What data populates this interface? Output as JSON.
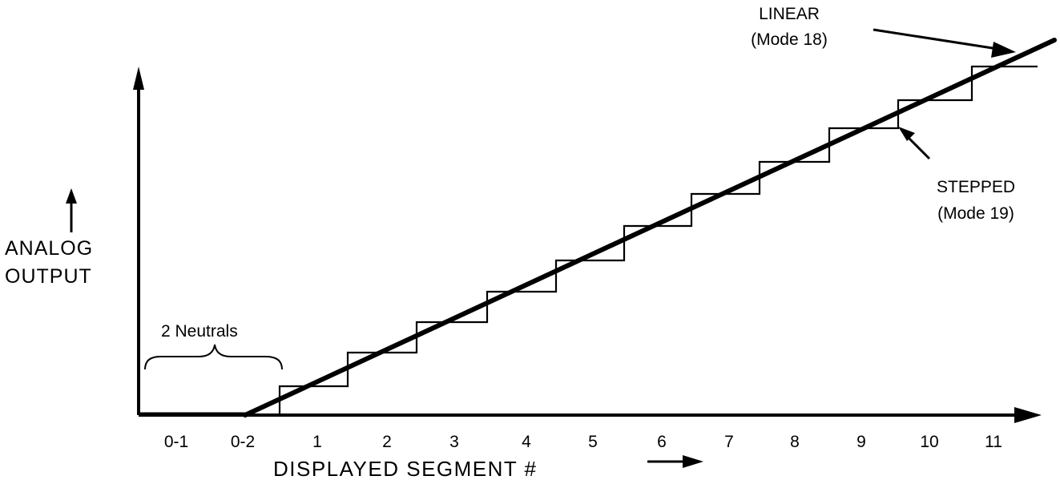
{
  "diagram": {
    "x_axis_title": "DISPLAYED SEGMENT #",
    "y_axis_title": [
      "ANALOG",
      "OUTPUT"
    ],
    "x_tick_labels": [
      "0-1",
      "0-2",
      "1",
      "2",
      "3",
      "4",
      "5",
      "6",
      "7",
      "8",
      "9",
      "10",
      "11"
    ],
    "neutrals_label": "2  Neutrals",
    "linear_label": [
      "LINEAR",
      "(Mode  18)"
    ],
    "stepped_label": [
      "STEPPED",
      "(Mode  19)"
    ],
    "line_color": "#000000",
    "background": "#ffffff"
  }
}
